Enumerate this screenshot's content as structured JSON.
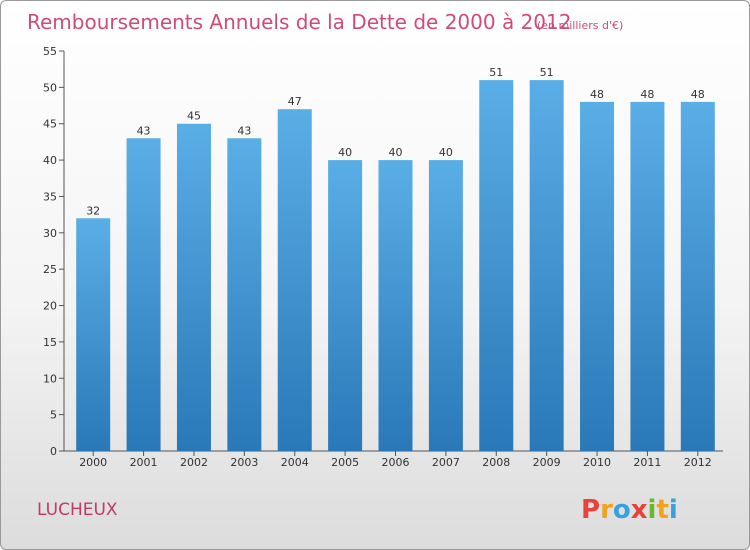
{
  "chart_data": {
    "type": "bar",
    "title": "Remboursements Annuels de la Dette de 2000 à 2012",
    "subtitle": "(en milliers d'€)",
    "categories": [
      "2000",
      "2001",
      "2002",
      "2003",
      "2004",
      "2005",
      "2006",
      "2007",
      "2008",
      "2009",
      "2010",
      "2011",
      "2012"
    ],
    "values": [
      32,
      43,
      45,
      43,
      47,
      40,
      40,
      40,
      51,
      51,
      48,
      48,
      48
    ],
    "ylim": [
      0,
      55
    ],
    "yticks": [
      0,
      5,
      10,
      15,
      20,
      25,
      30,
      35,
      40,
      45,
      50,
      55
    ],
    "grid": false,
    "bar_color_top": "#5aaee6",
    "bar_color_bottom": "#2a78b8"
  },
  "commune": "LUCHEUX",
  "logo": {
    "letters": [
      "P",
      "r",
      "o",
      "x",
      "i",
      "t",
      "i"
    ],
    "colors": [
      "#e8433a",
      "#f3a21c",
      "#3aa0e0",
      "#e8433a",
      "#6ab82e",
      "#f3a21c",
      "#3aa0e0"
    ]
  }
}
